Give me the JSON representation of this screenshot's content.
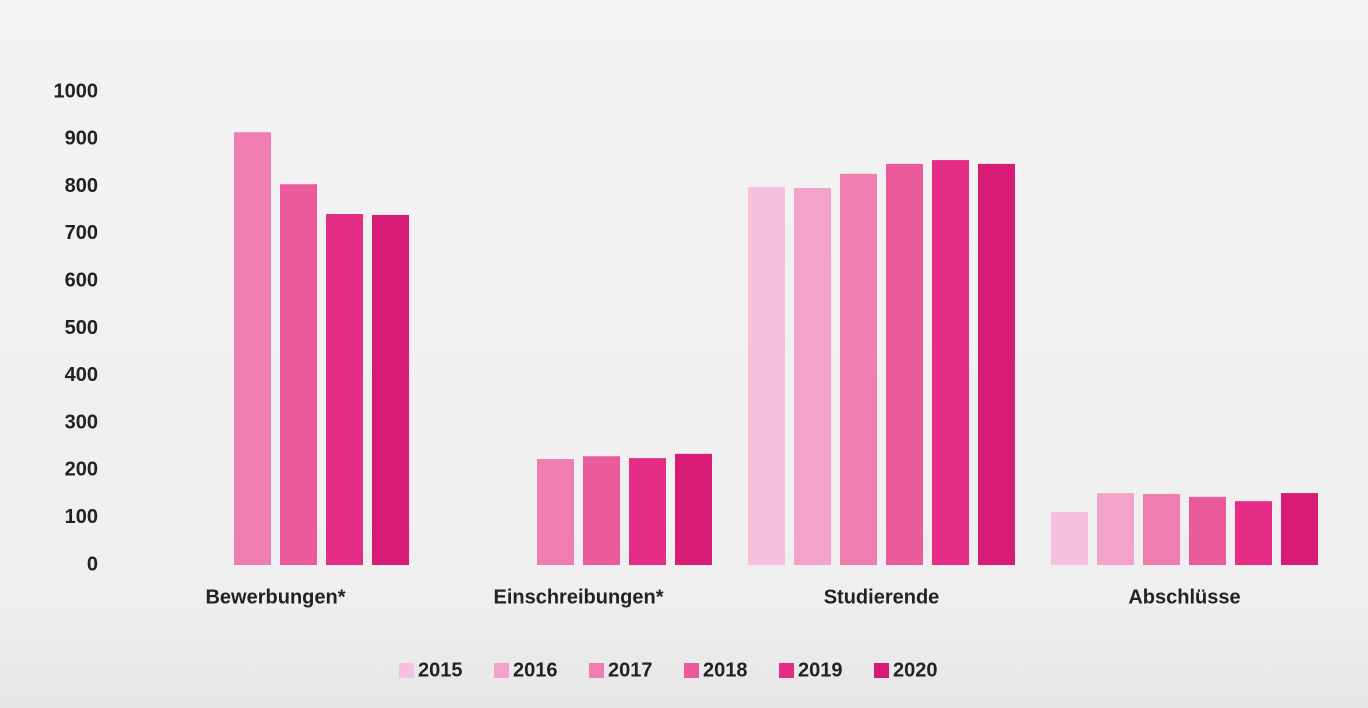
{
  "chart_data": {
    "type": "bar",
    "categories": [
      "Bewerbungen*",
      "Einschreibungen*",
      "Studierende",
      "Abschlüsse"
    ],
    "series": [
      {
        "name": "2015",
        "color": "#f7c1dc",
        "values": [
          null,
          null,
          799,
          112
        ]
      },
      {
        "name": "2016",
        "color": "#f4a3c8",
        "values": [
          null,
          null,
          797,
          152
        ]
      },
      {
        "name": "2017",
        "color": "#f07db0",
        "values": [
          915,
          224,
          827,
          150
        ]
      },
      {
        "name": "2018",
        "color": "#eb5a9b",
        "values": [
          805,
          230,
          848,
          144
        ]
      },
      {
        "name": "2019",
        "color": "#e62d86",
        "values": [
          742,
          226,
          856,
          135
        ]
      },
      {
        "name": "2020",
        "color": "#d81b74",
        "values": [
          740,
          235,
          848,
          152
        ]
      }
    ],
    "ylim": [
      0,
      1000
    ],
    "yticks": [
      0,
      100,
      200,
      300,
      400,
      500,
      600,
      700,
      800,
      900,
      1000
    ],
    "grid": false,
    "legend": "bottom"
  }
}
